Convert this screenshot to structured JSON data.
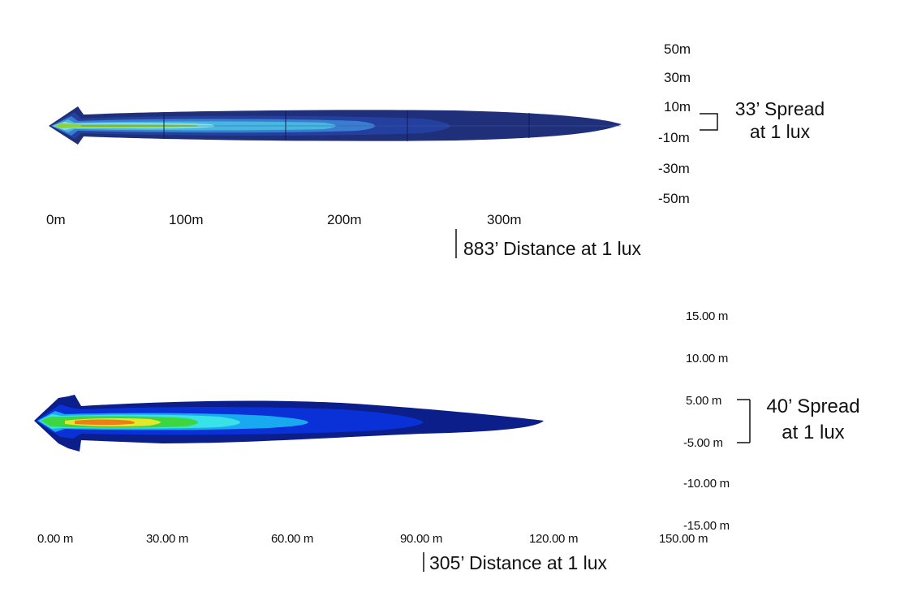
{
  "colors": {
    "top_outer": "#1f2f7a",
    "top_mid": "#243f9e",
    "top_inner": "#3a78d0",
    "top_light": "#46b6df",
    "top_cyan": "#7fe0e8",
    "top_green": "#8ed23a",
    "bottom_outer": "#0c1e8a",
    "bottom_mid": "#0a2fd6",
    "bottom_light": "#18a8f0",
    "bottom_cyan": "#36e0e6",
    "bottom_green": "#39d640",
    "bottom_yellow": "#e4e62a",
    "bottom_orange": "#f07d1a"
  },
  "top_plot": {
    "y_ticks": [
      "50m",
      "30m",
      "10m",
      "-10m",
      "-30m",
      "-50m"
    ],
    "x_ticks": [
      "0m",
      "100m",
      "200m",
      "300m"
    ],
    "spread_note": [
      "33’ Spread",
      "at 1 lux"
    ],
    "distance_note": "883’ Distance at 1 lux"
  },
  "bottom_plot": {
    "y_ticks": [
      "15.00 m",
      "10.00 m",
      "5.00 m",
      "-5.00 m",
      "-10.00 m",
      "-15.00 m"
    ],
    "x_ticks": [
      "0.00 m",
      "30.00 m",
      "60.00 m",
      "90.00 m",
      "120.00 m",
      "150.00 m"
    ],
    "spread_note": [
      "40’ Spread",
      "at 1 lux"
    ],
    "distance_note": "305’ Distance at 1 lux"
  }
}
